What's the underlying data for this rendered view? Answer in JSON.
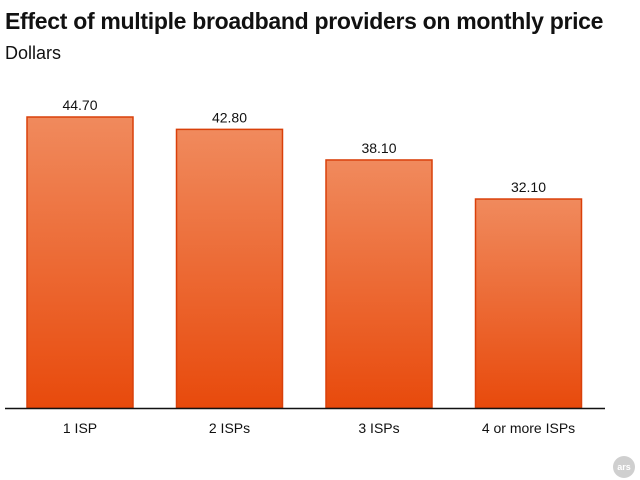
{
  "logo_text": "ars",
  "colors": {
    "bar_top": "#f08a5d",
    "bar_bottom": "#e84a0c",
    "bar_stroke": "#d9400a",
    "axis": "#111111",
    "text": "#111111",
    "badge": "#cfcfcf"
  },
  "chart_data": {
    "type": "bar",
    "title": "Effect of multiple broadband providers on monthly price",
    "subtitle": "Dollars",
    "categories": [
      "1 ISP",
      "2 ISPs",
      "3 ISPs",
      "4 or more ISPs"
    ],
    "values": [
      44.7,
      42.8,
      38.1,
      32.1
    ],
    "data_labels": [
      "44.70",
      "42.80",
      "38.10",
      "32.10"
    ],
    "xlabel": "",
    "ylabel": "",
    "ylim": [
      0,
      44.7
    ],
    "grid": false,
    "legend": "none"
  }
}
